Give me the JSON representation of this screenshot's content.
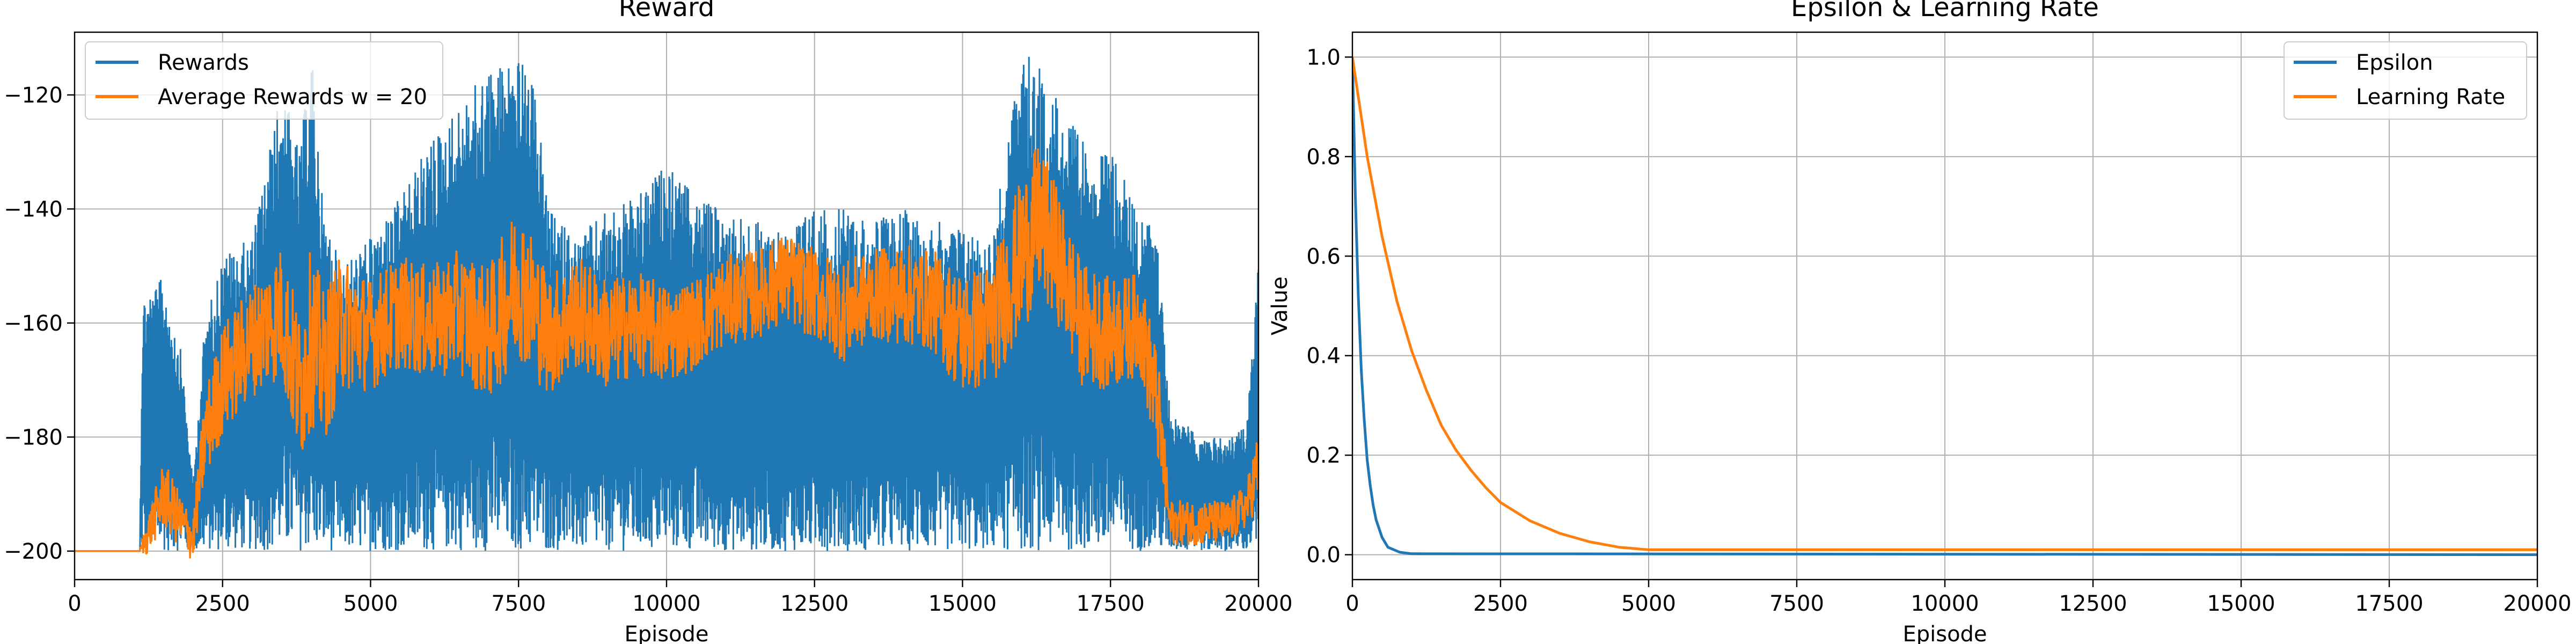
{
  "chart_data": [
    {
      "type": "line",
      "title": "Reward",
      "xlabel": "Episode",
      "ylabel": "",
      "xlim": [
        0,
        20000
      ],
      "ylim": [
        -205,
        -109
      ],
      "xticks": [
        0,
        2500,
        5000,
        7500,
        10000,
        12500,
        15000,
        17500,
        20000
      ],
      "yticks": [
        -200,
        -180,
        -160,
        -140,
        -120
      ],
      "xtick_labels": [
        "0",
        "2500",
        "5000",
        "7500",
        "10000",
        "12500",
        "15000",
        "17500",
        "20000"
      ],
      "ytick_labels": [
        "−200",
        "−180",
        "−160",
        "−140",
        "−120"
      ],
      "grid": true,
      "legend": "top-left",
      "series": [
        {
          "name": "Rewards",
          "color": "#1f77b4",
          "style": "band",
          "x": [
            0,
            1100,
            1150,
            1500,
            1800,
            2000,
            2200,
            2500,
            3000,
            3500,
            3800,
            4000,
            4200,
            4500,
            5000,
            5500,
            6000,
            6500,
            7000,
            7500,
            7800,
            8000,
            8500,
            9000,
            9500,
            10000,
            10500,
            11000,
            11500,
            12000,
            12500,
            13000,
            13500,
            14000,
            14500,
            15000,
            15500,
            16000,
            16300,
            16600,
            17000,
            17500,
            18000,
            18300,
            18500,
            19000,
            19500,
            19800,
            20000
          ],
          "upper": [
            -200,
            -200,
            -155,
            -152,
            -165,
            -188,
            -160,
            -148,
            -145,
            -118,
            -130,
            -112,
            -140,
            -150,
            -145,
            -138,
            -128,
            -122,
            -115,
            -113,
            -120,
            -140,
            -145,
            -140,
            -138,
            -132,
            -138,
            -140,
            -142,
            -143,
            -140,
            -140,
            -142,
            -140,
            -142,
            -143,
            -145,
            -112,
            -115,
            -120,
            -128,
            -130,
            -140,
            -145,
            -175,
            -180,
            -180,
            -178,
            -148
          ],
          "lower": [
            -200,
            -200,
            -200,
            -200,
            -200,
            -200,
            -200,
            -200,
            -200,
            -200,
            -200,
            -200,
            -200,
            -200,
            -200,
            -200,
            -200,
            -200,
            -200,
            -200,
            -200,
            -200,
            -200,
            -200,
            -200,
            -200,
            -200,
            -200,
            -200,
            -200,
            -200,
            -200,
            -200,
            -200,
            -200,
            -200,
            -200,
            -200,
            -200,
            -200,
            -200,
            -200,
            -200,
            -200,
            -200,
            -200,
            -200,
            -200,
            -200
          ]
        },
        {
          "name": "Average Rewards w = 20",
          "color": "#ff7f0e",
          "style": "noisy",
          "x": [
            0,
            1100,
            1200,
            1500,
            1800,
            2000,
            2200,
            2500,
            3000,
            3500,
            3800,
            4000,
            4200,
            4500,
            5000,
            5500,
            6000,
            6500,
            7000,
            7500,
            8000,
            8500,
            9000,
            9500,
            10000,
            10500,
            11000,
            11500,
            12000,
            12500,
            13000,
            13500,
            14000,
            14500,
            15000,
            15500,
            16000,
            16300,
            16600,
            17000,
            17500,
            18000,
            18300,
            18500,
            19000,
            19500,
            19800,
            20000
          ],
          "center": [
            -200,
            -200,
            -198,
            -190,
            -195,
            -198,
            -180,
            -170,
            -163,
            -158,
            -172,
            -162,
            -168,
            -160,
            -162,
            -158,
            -160,
            -158,
            -162,
            -152,
            -162,
            -158,
            -162,
            -160,
            -162,
            -160,
            -156,
            -155,
            -152,
            -155,
            -158,
            -155,
            -155,
            -156,
            -162,
            -160,
            -148,
            -142,
            -148,
            -160,
            -162,
            -160,
            -175,
            -195,
            -195,
            -195,
            -192,
            -185
          ],
          "spread": [
            0,
            0,
            3,
            6,
            5,
            4,
            8,
            10,
            10,
            12,
            14,
            16,
            14,
            12,
            10,
            10,
            10,
            11,
            12,
            14,
            11,
            10,
            10,
            9,
            9,
            8,
            8,
            8,
            8,
            8,
            9,
            8,
            9,
            9,
            11,
            11,
            14,
            14,
            12,
            11,
            10,
            9,
            10,
            4,
            4,
            4,
            4,
            7
          ]
        }
      ]
    },
    {
      "type": "line",
      "title": "Epsilon & Learning Rate",
      "xlabel": "Episode",
      "ylabel": "Value",
      "xlim": [
        0,
        20000
      ],
      "ylim": [
        -0.05,
        1.05
      ],
      "xticks": [
        0,
        2500,
        5000,
        7500,
        10000,
        12500,
        15000,
        17500,
        20000
      ],
      "yticks": [
        0.0,
        0.2,
        0.4,
        0.6,
        0.8,
        1.0
      ],
      "xtick_labels": [
        "0",
        "2500",
        "5000",
        "7500",
        "10000",
        "12500",
        "15000",
        "17500",
        "20000"
      ],
      "ytick_labels": [
        "0.0",
        "0.2",
        "0.4",
        "0.6",
        "0.8",
        "1.0"
      ],
      "grid": true,
      "legend": "top-right",
      "series": [
        {
          "name": "Epsilon",
          "color": "#1f77b4",
          "x": [
            0,
            50,
            100,
            150,
            200,
            250,
            300,
            350,
            400,
            500,
            600,
            800,
            1000,
            20000
          ],
          "y": [
            1.0,
            0.72,
            0.52,
            0.37,
            0.27,
            0.19,
            0.14,
            0.1,
            0.07,
            0.035,
            0.015,
            0.005,
            0.002,
            0.0
          ]
        },
        {
          "name": "Learning Rate",
          "color": "#ff7f0e",
          "x": [
            0,
            250,
            500,
            750,
            1000,
            1250,
            1500,
            1750,
            2000,
            2250,
            2500,
            3000,
            3500,
            4000,
            4500,
            5000,
            20000
          ],
          "y": [
            1.0,
            0.8,
            0.64,
            0.51,
            0.41,
            0.33,
            0.26,
            0.21,
            0.17,
            0.135,
            0.105,
            0.068,
            0.043,
            0.026,
            0.015,
            0.01,
            0.01
          ]
        }
      ]
    }
  ]
}
